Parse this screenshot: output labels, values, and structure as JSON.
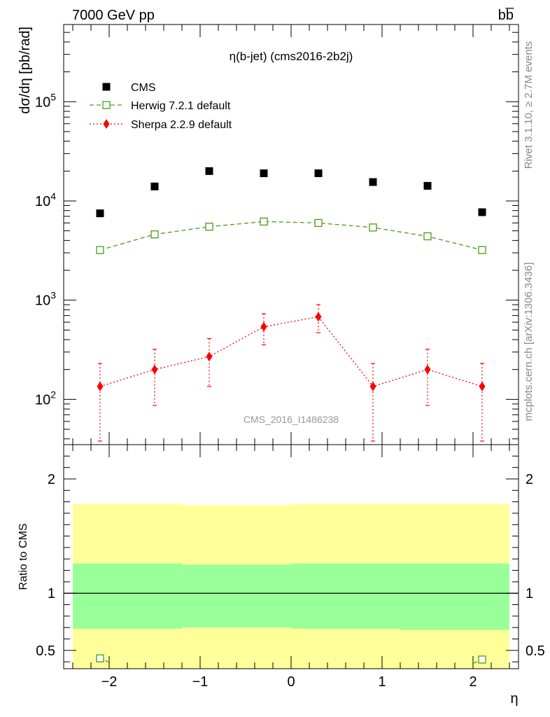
{
  "header": {
    "energy_label": "7000 GeV pp",
    "process_label": "bb̅"
  },
  "side": {
    "rivet_label": "Rivet 3.1.10, ≥ 2.7M events",
    "mcplots_label": "mcplots.cern.ch [arXiv:1306.3436]"
  },
  "chart_data": [
    {
      "type": "scatter",
      "title": "η(b-jet) (cms2016-2b2j)",
      "xlabel": "η",
      "ylabel": "dσ/dη [pb/rad]",
      "yscale": "log",
      "xlim": [
        -2.5,
        2.5
      ],
      "ylim": [
        35,
        600000
      ],
      "y_tick_labels": [
        "10^2",
        "10^3",
        "10^4",
        "10^5"
      ],
      "watermark": "CMS_2016_I1486238",
      "legend_position": "top-left",
      "x": [
        -2.1,
        -1.5,
        -0.9,
        -0.3,
        0.3,
        0.9,
        1.5,
        2.1
      ],
      "series": [
        {
          "name": "CMS",
          "color": "#000000",
          "marker": "filled-square",
          "values": [
            7500,
            14000,
            20000,
            19000,
            19000,
            15500,
            14200,
            7700
          ]
        },
        {
          "name": "Herwig 7.2.1 default",
          "color": "#4a9a1a",
          "marker": "open-square",
          "line": "dashed",
          "values": [
            3200,
            4600,
            5500,
            6200,
            6000,
            5400,
            4400,
            3200
          ]
        },
        {
          "name": "Sherpa 2.2.9 default",
          "color": "#ff0000",
          "marker": "filled-diamond",
          "line": "dotted",
          "values": [
            135,
            200,
            270,
            540,
            680,
            135,
            200,
            135
          ],
          "err_low": [
            97,
            113,
            135,
            185,
            210,
            97,
            113,
            97
          ],
          "err_high": [
            95,
            120,
            140,
            190,
            220,
            95,
            120,
            95
          ]
        }
      ]
    },
    {
      "type": "scatter",
      "ylabel": "Ratio to CMS",
      "xlabel": "η",
      "xlim": [
        -2.5,
        2.5
      ],
      "ylim": [
        0.34,
        2.3
      ],
      "x_tick_labels": [
        "−2",
        "−1",
        "0",
        "1",
        "2"
      ],
      "y_tick_labels": [
        "0.5",
        "1",
        "2"
      ],
      "reference_line": 1,
      "bands": [
        {
          "x_range": [
            -2.4,
            -1.2
          ],
          "inner": [
            0.69,
            1.26
          ],
          "outer": [
            0.2,
            1.78
          ]
        },
        {
          "x_range": [
            -1.2,
            0.0
          ],
          "inner": [
            0.7,
            1.25
          ],
          "outer": [
            0.2,
            1.77
          ]
        },
        {
          "x_range": [
            0.0,
            1.2
          ],
          "inner": [
            0.69,
            1.26
          ],
          "outer": [
            0.2,
            1.78
          ]
        },
        {
          "x_range": [
            1.2,
            2.4
          ],
          "inner": [
            0.68,
            1.26
          ],
          "outer": [
            0.2,
            1.78
          ]
        }
      ],
      "band_colors": {
        "inner": "#99ff99",
        "outer": "#ffff99"
      },
      "series": [
        {
          "name": "Herwig 7.2.1 default",
          "color": "#4a9a1a",
          "marker": "open-square",
          "x": [
            -2.1,
            2.1
          ],
          "values": [
            0.43,
            0.42
          ]
        }
      ]
    }
  ]
}
